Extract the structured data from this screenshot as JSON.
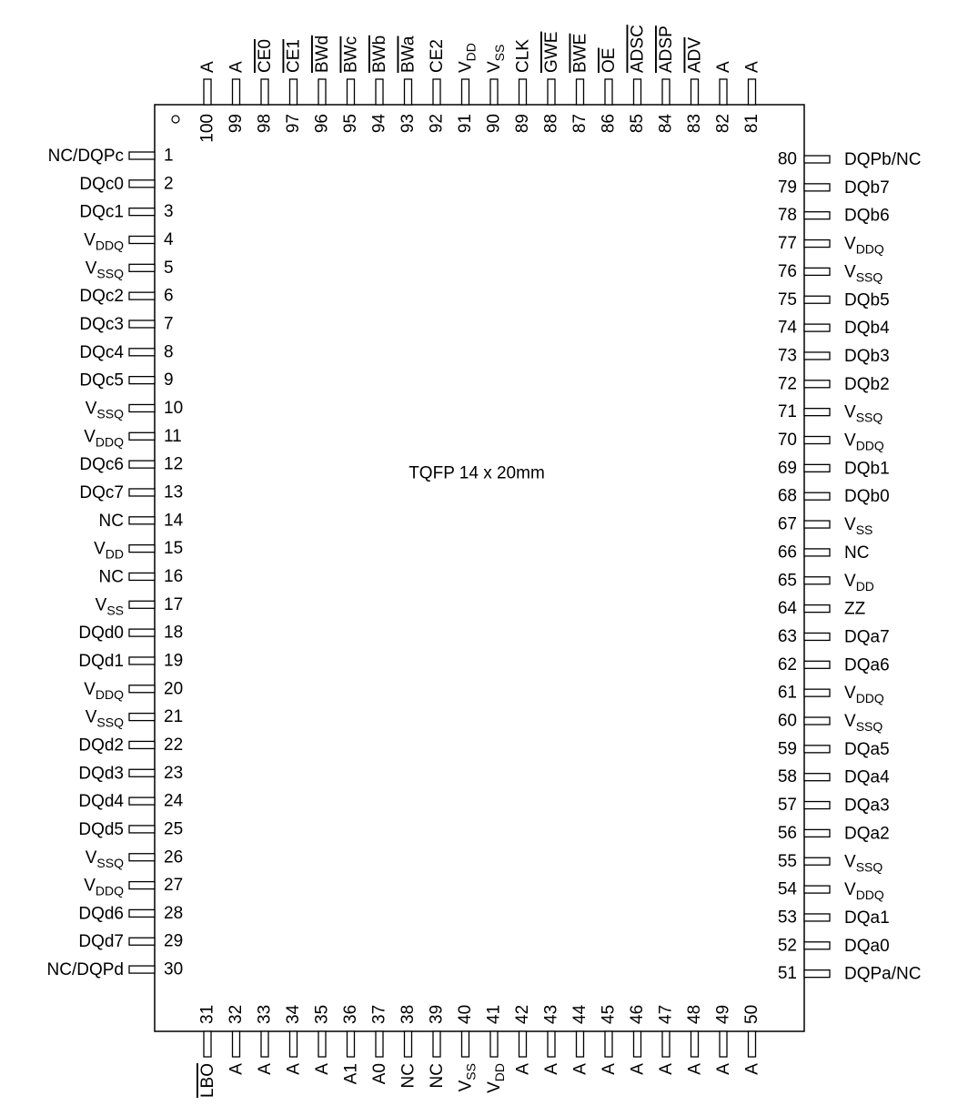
{
  "package": "TQFP 14 x 20mm",
  "pins": [
    {
      "number": 1,
      "name": "NC/DQPc"
    },
    {
      "number": 2,
      "name": "DQc0"
    },
    {
      "number": 3,
      "name": "DQc1"
    },
    {
      "number": 4,
      "name": "V",
      "sub": "DDQ"
    },
    {
      "number": 5,
      "name": "V",
      "sub": "SSQ"
    },
    {
      "number": 6,
      "name": "DQc2"
    },
    {
      "number": 7,
      "name": "DQc3"
    },
    {
      "number": 8,
      "name": "DQc4"
    },
    {
      "number": 9,
      "name": "DQc5"
    },
    {
      "number": 10,
      "name": "V",
      "sub": "SSQ"
    },
    {
      "number": 11,
      "name": "V",
      "sub": "DDQ"
    },
    {
      "number": 12,
      "name": "DQc6"
    },
    {
      "number": 13,
      "name": "DQc7"
    },
    {
      "number": 14,
      "name": "NC"
    },
    {
      "number": 15,
      "name": "V",
      "sub": "DD"
    },
    {
      "number": 16,
      "name": "NC"
    },
    {
      "number": 17,
      "name": "V",
      "sub": "SS"
    },
    {
      "number": 18,
      "name": "DQd0"
    },
    {
      "number": 19,
      "name": "DQd1"
    },
    {
      "number": 20,
      "name": "V",
      "sub": "DDQ"
    },
    {
      "number": 21,
      "name": "V",
      "sub": "SSQ"
    },
    {
      "number": 22,
      "name": "DQd2"
    },
    {
      "number": 23,
      "name": "DQd3"
    },
    {
      "number": 24,
      "name": "DQd4"
    },
    {
      "number": 25,
      "name": "DQd5"
    },
    {
      "number": 26,
      "name": "V",
      "sub": "SSQ"
    },
    {
      "number": 27,
      "name": "V",
      "sub": "DDQ"
    },
    {
      "number": 28,
      "name": "DQd6"
    },
    {
      "number": 29,
      "name": "DQd7"
    },
    {
      "number": 30,
      "name": "NC/DQPd"
    },
    {
      "number": 31,
      "name": "LBO",
      "bar": true
    },
    {
      "number": 32,
      "name": "A"
    },
    {
      "number": 33,
      "name": "A"
    },
    {
      "number": 34,
      "name": "A"
    },
    {
      "number": 35,
      "name": "A"
    },
    {
      "number": 36,
      "name": "A1"
    },
    {
      "number": 37,
      "name": "A0"
    },
    {
      "number": 38,
      "name": "NC"
    },
    {
      "number": 39,
      "name": "NC"
    },
    {
      "number": 40,
      "name": "V",
      "sub": "SS"
    },
    {
      "number": 41,
      "name": "V",
      "sub": "DD"
    },
    {
      "number": 42,
      "name": "A"
    },
    {
      "number": 43,
      "name": "A"
    },
    {
      "number": 44,
      "name": "A"
    },
    {
      "number": 45,
      "name": "A"
    },
    {
      "number": 46,
      "name": "A"
    },
    {
      "number": 47,
      "name": "A"
    },
    {
      "number": 48,
      "name": "A"
    },
    {
      "number": 49,
      "name": "A"
    },
    {
      "number": 50,
      "name": "A"
    },
    {
      "number": 51,
      "name": "DQPa/NC"
    },
    {
      "number": 52,
      "name": "DQa0"
    },
    {
      "number": 53,
      "name": "DQa1"
    },
    {
      "number": 54,
      "name": "V",
      "sub": "DDQ"
    },
    {
      "number": 55,
      "name": "V",
      "sub": "SSQ"
    },
    {
      "number": 56,
      "name": "DQa2"
    },
    {
      "number": 57,
      "name": "DQa3"
    },
    {
      "number": 58,
      "name": "DQa4"
    },
    {
      "number": 59,
      "name": "DQa5"
    },
    {
      "number": 60,
      "name": "V",
      "sub": "SSQ"
    },
    {
      "number": 61,
      "name": "V",
      "sub": "DDQ"
    },
    {
      "number": 62,
      "name": "DQa6"
    },
    {
      "number": 63,
      "name": "DQa7"
    },
    {
      "number": 64,
      "name": "ZZ"
    },
    {
      "number": 65,
      "name": "V",
      "sub": "DD"
    },
    {
      "number": 66,
      "name": "NC"
    },
    {
      "number": 67,
      "name": "V",
      "sub": "SS"
    },
    {
      "number": 68,
      "name": "DQb0"
    },
    {
      "number": 69,
      "name": "DQb1"
    },
    {
      "number": 70,
      "name": "V",
      "sub": "DDQ"
    },
    {
      "number": 71,
      "name": "V",
      "sub": "SSQ"
    },
    {
      "number": 72,
      "name": "DQb2"
    },
    {
      "number": 73,
      "name": "DQb3"
    },
    {
      "number": 74,
      "name": "DQb4"
    },
    {
      "number": 75,
      "name": "DQb5"
    },
    {
      "number": 76,
      "name": "V",
      "sub": "SSQ"
    },
    {
      "number": 77,
      "name": "V",
      "sub": "DDQ"
    },
    {
      "number": 78,
      "name": "DQb6"
    },
    {
      "number": 79,
      "name": "DQb7"
    },
    {
      "number": 80,
      "name": "DQPb/NC"
    },
    {
      "number": 81,
      "name": "A"
    },
    {
      "number": 82,
      "name": "A"
    },
    {
      "number": 83,
      "name": "ADV",
      "bar": true
    },
    {
      "number": 84,
      "name": "ADSP",
      "bar": true
    },
    {
      "number": 85,
      "name": "ADSC",
      "bar": true
    },
    {
      "number": 86,
      "name": "OE",
      "bar": true
    },
    {
      "number": 87,
      "name": "BWE",
      "bar": true
    },
    {
      "number": 88,
      "name": "GWE",
      "bar": true
    },
    {
      "number": 89,
      "name": "CLK"
    },
    {
      "number": 90,
      "name": "V",
      "sub": "SS"
    },
    {
      "number": 91,
      "name": "V",
      "sub": "DD"
    },
    {
      "number": 92,
      "name": "CE2"
    },
    {
      "number": 93,
      "name": "BWa",
      "bar": true
    },
    {
      "number": 94,
      "name": "BWb",
      "bar": true
    },
    {
      "number": 95,
      "name": "BWc",
      "bar": true
    },
    {
      "number": 96,
      "name": "BWd",
      "bar": true
    },
    {
      "number": 97,
      "name": "CE1",
      "bar": true
    },
    {
      "number": 98,
      "name": "CE0",
      "bar": true
    },
    {
      "number": 99,
      "name": "A"
    },
    {
      "number": 100,
      "name": "A"
    }
  ]
}
